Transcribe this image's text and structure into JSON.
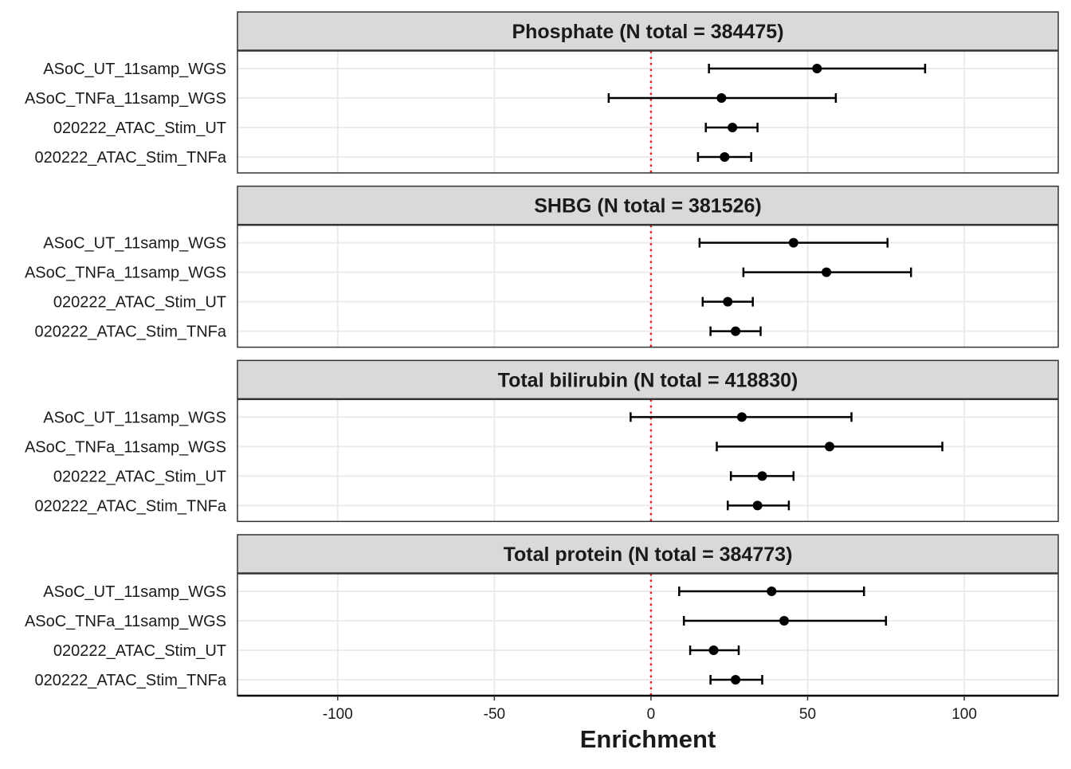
{
  "chart_data": {
    "type": "forest",
    "xlabel": "Enrichment",
    "xlim": [
      -132,
      130
    ],
    "x_ticks": [
      -100,
      -50,
      0,
      50,
      100
    ],
    "x_tick_labels": [
      "-100",
      "-50",
      "0",
      "50",
      "100"
    ],
    "reference_line": {
      "x": 0,
      "style": "dotted",
      "color": "#e41a1c"
    },
    "grid": true,
    "categories": [
      "ASoC_UT_11samp_WGS",
      "ASoC_TNFa_11samp_WGS",
      "020222_ATAC_Stim_UT",
      "020222_ATAC_Stim_TNFa"
    ],
    "panels": [
      {
        "title": "Phosphate (N total = 384475)",
        "points": [
          {
            "label": "ASoC_UT_11samp_WGS",
            "estimate": 53,
            "lower": 18.5,
            "upper": 87.5
          },
          {
            "label": "ASoC_TNFa_11samp_WGS",
            "estimate": 22.5,
            "lower": -13.5,
            "upper": 59
          },
          {
            "label": "020222_ATAC_Stim_UT",
            "estimate": 26,
            "lower": 17.5,
            "upper": 34
          },
          {
            "label": "020222_ATAC_Stim_TNFa",
            "estimate": 23.5,
            "lower": 15,
            "upper": 32
          }
        ]
      },
      {
        "title": "SHBG (N total = 381526)",
        "points": [
          {
            "label": "ASoC_UT_11samp_WGS",
            "estimate": 45.5,
            "lower": 15.5,
            "upper": 75.5
          },
          {
            "label": "ASoC_TNFa_11samp_WGS",
            "estimate": 56,
            "lower": 29.5,
            "upper": 83
          },
          {
            "label": "020222_ATAC_Stim_UT",
            "estimate": 24.5,
            "lower": 16.5,
            "upper": 32.5
          },
          {
            "label": "020222_ATAC_Stim_TNFa",
            "estimate": 27,
            "lower": 19,
            "upper": 35
          }
        ]
      },
      {
        "title": "Total bilirubin (N total = 418830)",
        "points": [
          {
            "label": "ASoC_UT_11samp_WGS",
            "estimate": 29,
            "lower": -6.5,
            "upper": 64
          },
          {
            "label": "ASoC_TNFa_11samp_WGS",
            "estimate": 57,
            "lower": 21,
            "upper": 93
          },
          {
            "label": "020222_ATAC_Stim_UT",
            "estimate": 35.5,
            "lower": 25.5,
            "upper": 45.5
          },
          {
            "label": "020222_ATAC_Stim_TNFa",
            "estimate": 34,
            "lower": 24.5,
            "upper": 44
          }
        ]
      },
      {
        "title": "Total protein (N total = 384773)",
        "points": [
          {
            "label": "ASoC_UT_11samp_WGS",
            "estimate": 38.5,
            "lower": 9,
            "upper": 68
          },
          {
            "label": "ASoC_TNFa_11samp_WGS",
            "estimate": 42.5,
            "lower": 10.5,
            "upper": 75
          },
          {
            "label": "020222_ATAC_Stim_UT",
            "estimate": 20,
            "lower": 12.5,
            "upper": 28
          },
          {
            "label": "020222_ATAC_Stim_TNFa",
            "estimate": 27,
            "lower": 19,
            "upper": 35.5
          }
        ]
      }
    ]
  }
}
